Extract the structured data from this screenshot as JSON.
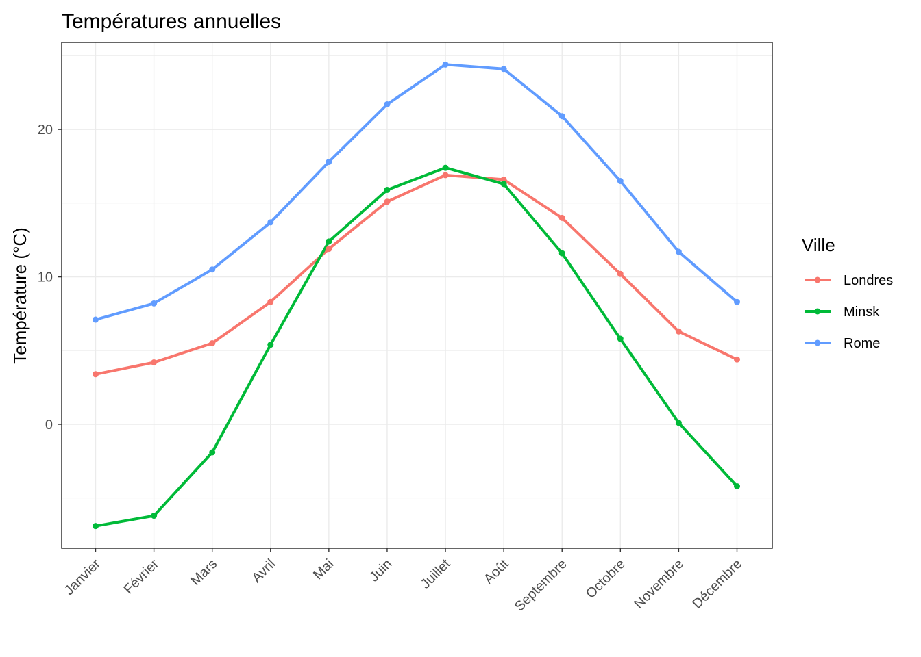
{
  "chart_data": {
    "type": "line",
    "title": "Températures annuelles",
    "xlabel": "",
    "ylabel": "Température (°C)",
    "categories": [
      "Janvier",
      "Février",
      "Mars",
      "Avril",
      "Mai",
      "Juin",
      "Juillet",
      "Août",
      "Septembre",
      "Octobre",
      "Novembre",
      "Décembre"
    ],
    "yticks": [
      0,
      10,
      20
    ],
    "ylim": [
      -8.4,
      25.9
    ],
    "grid": true,
    "legend": {
      "title": "Ville",
      "position": "right"
    },
    "series": [
      {
        "name": "Londres",
        "color": "#F8766D",
        "values": [
          3.4,
          4.2,
          5.5,
          8.3,
          11.9,
          15.1,
          16.9,
          16.6,
          14.0,
          10.2,
          6.3,
          4.4
        ]
      },
      {
        "name": "Minsk",
        "color": "#00BA38",
        "values": [
          -6.9,
          -6.2,
          -1.9,
          5.4,
          12.4,
          15.9,
          17.4,
          16.3,
          11.6,
          5.8,
          0.1,
          -4.2
        ]
      },
      {
        "name": "Rome",
        "color": "#619CFF",
        "values": [
          7.1,
          8.2,
          10.5,
          13.7,
          17.8,
          21.7,
          24.4,
          24.1,
          20.9,
          16.5,
          11.7,
          8.3
        ]
      }
    ]
  }
}
